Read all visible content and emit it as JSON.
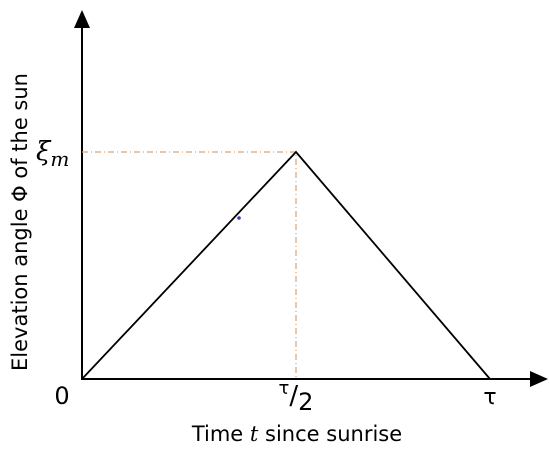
{
  "diagram": {
    "y_axis_label": "Elevation angle Φ of the sun",
    "x_axis_label": {
      "before": "Time ",
      "variable": "t",
      "after": " since sunrise"
    },
    "origin_label": "0",
    "peak_x_label": {
      "numerator": "τ",
      "separator": "/",
      "denominator": "2"
    },
    "end_x_label": "τ",
    "peak_y_label": {
      "symbol": "ξ",
      "subscript": "m"
    }
  }
}
